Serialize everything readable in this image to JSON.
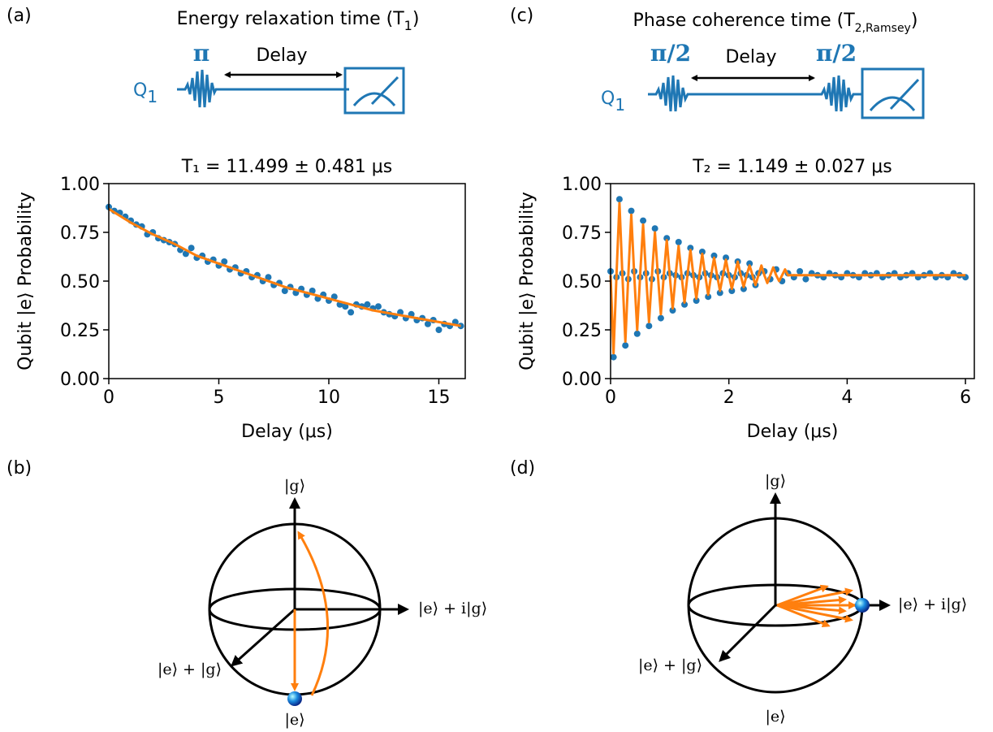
{
  "chart_data": [
    {
      "type": "scatter",
      "title": "T₁ = 11.499 ± 0.481 μs",
      "xlabel": "Delay (μs)",
      "ylabel": "Qubit |e⟩ Probability",
      "xlim": [
        0,
        16.2
      ],
      "ylim": [
        0,
        1
      ],
      "xticks": [
        0,
        5,
        10,
        15
      ],
      "yticks": [
        {
          "value": 0,
          "label": "0.00"
        },
        {
          "value": 0.25,
          "label": "0.25"
        },
        {
          "value": 0.5,
          "label": "0.50"
        },
        {
          "value": 0.75,
          "label": "0.75"
        },
        {
          "value": 1,
          "label": "1.00"
        }
      ],
      "series": [
        {
          "style": "markers",
          "color": "#1f77b4",
          "x": [
            0,
            0.25,
            0.5,
            0.75,
            1,
            1.25,
            1.5,
            1.75,
            2,
            2.25,
            2.5,
            2.75,
            3,
            3.25,
            3.5,
            3.75,
            4,
            4.25,
            4.5,
            4.75,
            5,
            5.25,
            5.5,
            5.75,
            6,
            6.25,
            6.5,
            6.75,
            7,
            7.25,
            7.5,
            7.75,
            8,
            8.25,
            8.5,
            8.75,
            9,
            9.25,
            9.5,
            9.75,
            10,
            10.25,
            10.5,
            10.75,
            11,
            11.25,
            11.5,
            11.75,
            12,
            12.25,
            12.5,
            12.75,
            13,
            13.25,
            13.5,
            13.75,
            14,
            14.25,
            14.5,
            14.75,
            15,
            15.25,
            15.5,
            15.75,
            16
          ],
          "values": [
            0.88,
            0.86,
            0.85,
            0.83,
            0.81,
            0.79,
            0.78,
            0.74,
            0.75,
            0.72,
            0.71,
            0.7,
            0.69,
            0.66,
            0.64,
            0.67,
            0.62,
            0.63,
            0.6,
            0.61,
            0.58,
            0.6,
            0.56,
            0.57,
            0.54,
            0.55,
            0.52,
            0.53,
            0.5,
            0.52,
            0.48,
            0.49,
            0.45,
            0.47,
            0.44,
            0.46,
            0.43,
            0.45,
            0.41,
            0.43,
            0.4,
            0.42,
            0.38,
            0.37,
            0.34,
            0.38,
            0.37,
            0.38,
            0.36,
            0.37,
            0.34,
            0.33,
            0.32,
            0.34,
            0.31,
            0.33,
            0.3,
            0.31,
            0.28,
            0.3,
            0.25,
            0.28,
            0.27,
            0.29,
            0.27
          ]
        },
        {
          "style": "line",
          "color": "#ff7f0e",
          "x": [
            0,
            1,
            2,
            3,
            4,
            5,
            6,
            7,
            8,
            9,
            10,
            11,
            12,
            13,
            14,
            15,
            16
          ],
          "values": [
            0.87,
            0.8,
            0.74,
            0.69,
            0.63,
            0.59,
            0.55,
            0.51,
            0.47,
            0.44,
            0.41,
            0.38,
            0.35,
            0.33,
            0.31,
            0.29,
            0.27
          ]
        }
      ]
    },
    {
      "type": "scatter",
      "title": "T₂ = 1.149 ± 0.027 μs",
      "xlabel": "Delay (μs)",
      "ylabel": "Qubit |e⟩ Probability",
      "xlim": [
        0,
        6.15
      ],
      "ylim": [
        0,
        1
      ],
      "xticks": [
        0,
        2,
        4,
        6
      ],
      "yticks": [
        {
          "value": 0,
          "label": "0.00"
        },
        {
          "value": 0.25,
          "label": "0.25"
        },
        {
          "value": 0.5,
          "label": "0.50"
        },
        {
          "value": 0.75,
          "label": "0.75"
        },
        {
          "value": 1,
          "label": "1.00"
        }
      ],
      "series": [
        {
          "style": "markers",
          "color": "#1f77b4",
          "x": [
            0,
            0.05,
            0.1,
            0.15,
            0.2,
            0.25,
            0.3,
            0.35,
            0.4,
            0.45,
            0.5,
            0.55,
            0.6,
            0.65,
            0.7,
            0.75,
            0.8,
            0.85,
            0.9,
            0.95,
            1,
            1.05,
            1.1,
            1.15,
            1.2,
            1.25,
            1.3,
            1.35,
            1.4,
            1.45,
            1.5,
            1.55,
            1.6,
            1.65,
            1.7,
            1.75,
            1.8,
            1.85,
            1.9,
            1.95,
            2,
            2.05,
            2.1,
            2.15,
            2.2,
            2.25,
            2.3,
            2.35,
            2.4,
            2.45,
            2.5,
            2.6,
            2.7,
            2.8,
            2.9,
            3,
            3.1,
            3.2,
            3.3,
            3.4,
            3.5,
            3.6,
            3.7,
            3.8,
            3.9,
            4,
            4.1,
            4.2,
            4.3,
            4.4,
            4.5,
            4.6,
            4.7,
            4.8,
            4.9,
            5,
            5.1,
            5.2,
            5.3,
            5.4,
            5.5,
            5.6,
            5.7,
            5.8,
            5.9,
            6
          ],
          "values": [
            0.55,
            0.11,
            0.52,
            0.92,
            0.54,
            0.17,
            0.51,
            0.86,
            0.55,
            0.23,
            0.52,
            0.81,
            0.54,
            0.27,
            0.51,
            0.77,
            0.55,
            0.31,
            0.52,
            0.72,
            0.54,
            0.35,
            0.53,
            0.7,
            0.52,
            0.38,
            0.54,
            0.67,
            0.53,
            0.4,
            0.52,
            0.65,
            0.54,
            0.42,
            0.53,
            0.63,
            0.52,
            0.44,
            0.54,
            0.62,
            0.53,
            0.45,
            0.52,
            0.6,
            0.54,
            0.46,
            0.53,
            0.59,
            0.52,
            0.48,
            0.54,
            0.55,
            0.51,
            0.56,
            0.5,
            0.54,
            0.52,
            0.55,
            0.51,
            0.54,
            0.53,
            0.52,
            0.54,
            0.53,
            0.52,
            0.54,
            0.53,
            0.52,
            0.54,
            0.53,
            0.54,
            0.52,
            0.53,
            0.54,
            0.52,
            0.53,
            0.54,
            0.52,
            0.53,
            0.54,
            0.52,
            0.53,
            0.52,
            0.54,
            0.53,
            0.52
          ]
        },
        {
          "style": "line",
          "color": "#ff7f0e",
          "x": [
            0,
            0.05,
            0.1,
            0.15,
            0.2,
            0.25,
            0.3,
            0.35,
            0.4,
            0.45,
            0.5,
            0.55,
            0.6,
            0.65,
            0.7,
            0.75,
            0.8,
            0.85,
            0.9,
            0.95,
            1,
            1.05,
            1.1,
            1.15,
            1.2,
            1.25,
            1.3,
            1.35,
            1.4,
            1.45,
            1.5,
            1.55,
            1.6,
            1.65,
            1.7,
            1.75,
            1.8,
            1.85,
            1.9,
            1.95,
            2,
            2.05,
            2.1,
            2.15,
            2.2,
            2.25,
            2.3,
            2.35,
            2.4,
            2.45,
            2.5,
            2.55,
            2.6,
            2.65,
            2.7,
            2.75,
            2.8,
            2.85,
            2.9,
            2.95,
            3,
            3.25,
            3.5,
            3.75,
            4,
            4.25,
            4.5,
            4.75,
            5,
            5.25,
            5.5,
            5.75,
            6
          ],
          "values": [
            0.53,
            0.13,
            0.53,
            0.9,
            0.53,
            0.19,
            0.53,
            0.84,
            0.53,
            0.25,
            0.53,
            0.79,
            0.53,
            0.29,
            0.53,
            0.75,
            0.53,
            0.33,
            0.53,
            0.71,
            0.53,
            0.36,
            0.53,
            0.68,
            0.53,
            0.39,
            0.53,
            0.66,
            0.53,
            0.41,
            0.53,
            0.64,
            0.53,
            0.43,
            0.53,
            0.62,
            0.53,
            0.45,
            0.53,
            0.61,
            0.53,
            0.46,
            0.53,
            0.6,
            0.53,
            0.47,
            0.53,
            0.58,
            0.53,
            0.48,
            0.53,
            0.58,
            0.53,
            0.49,
            0.53,
            0.57,
            0.53,
            0.5,
            0.53,
            0.56,
            0.53,
            0.53,
            0.53,
            0.53,
            0.53,
            0.53,
            0.53,
            0.53,
            0.53,
            0.53,
            0.53,
            0.53,
            0.53
          ]
        }
      ]
    }
  ],
  "panels": {
    "a": {
      "label": "(a)",
      "title": "Energy relaxation time (T",
      "title_sub": "1",
      "title_end": ")",
      "qubit": "Q",
      "qubit_sub": "1",
      "gate": "π",
      "delay": "Delay"
    },
    "b": {
      "label": "(b)",
      "top": "|g⟩",
      "right": "|e⟩ + i|g⟩",
      "front": "|e⟩ + |g⟩",
      "bottom": "|e⟩"
    },
    "c": {
      "label": "(c)",
      "title": "Phase coherence time (T",
      "title_sub": "2,Ramsey",
      "title_end": ")",
      "qubit": "Q",
      "qubit_sub": "1",
      "gate_1": "π/2",
      "gate_2": "π/2",
      "delay": "Delay"
    },
    "d": {
      "label": "(d)",
      "top": "|g⟩",
      "right": "|e⟩ + i|g⟩",
      "front": "|e⟩ + |g⟩",
      "bottom": "|e⟩"
    }
  }
}
